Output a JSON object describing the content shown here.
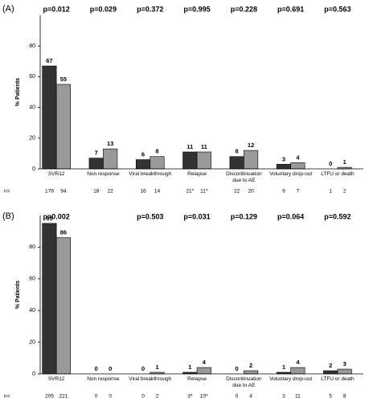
{
  "chart_data": [
    {
      "type": "bar",
      "panel_label": "(A)",
      "y_label": "% Patients",
      "categories": [
        "SVR12",
        "Non response",
        "Viral breakthrough",
        "Relapse",
        "Discontinuation due to AE",
        "Voluntary drop-out",
        "LTFU or death"
      ],
      "p_values": [
        "p=0.012",
        "p=0.029",
        "p=0.372",
        "p=0.995",
        "p=0.228",
        "p=0.691",
        "p=0.563"
      ],
      "series": [
        {
          "color": "#333333",
          "values": [
            67,
            7,
            6,
            11,
            8,
            3,
            0
          ],
          "n": [
            "179",
            "18",
            "16",
            "21*",
            "22",
            "9",
            "1"
          ]
        },
        {
          "color": "#999999",
          "values": [
            55,
            13,
            8,
            11,
            12,
            4,
            1
          ],
          "n": [
            "94",
            "22",
            "14",
            "11*",
            "20",
            "7",
            "2"
          ]
        }
      ],
      "n_label": "n=",
      "ylim": [
        0,
        100
      ],
      "yticks": [
        0,
        20,
        40,
        60,
        80
      ]
    },
    {
      "type": "bar",
      "panel_label": "(B)",
      "y_label": "% Patients",
      "categories": [
        "SVR12",
        "Non response",
        "Viral breakthrough",
        "Relapse",
        "Discontinuation due to AE",
        "Voluntary drop-out",
        "LTFU or death"
      ],
      "p_values": [
        "p=0.002",
        null,
        "p=0.503",
        "p=0.031",
        "p=0.129",
        "p=0.064",
        "p=0.592"
      ],
      "series": [
        {
          "color": "#333333",
          "values": [
            95,
            0,
            0,
            1,
            0,
            1,
            2
          ],
          "n": [
            "205",
            "0",
            "0",
            "3*",
            "0",
            "3",
            "5"
          ]
        },
        {
          "color": "#999999",
          "values": [
            86,
            0,
            1,
            4,
            2,
            4,
            3
          ],
          "n": [
            "221",
            "0",
            "2",
            "10*",
            "4",
            "11",
            "8"
          ]
        }
      ],
      "n_label": "n=",
      "ylim": [
        0,
        100
      ],
      "yticks": [
        0,
        20,
        40,
        60,
        80
      ]
    }
  ]
}
